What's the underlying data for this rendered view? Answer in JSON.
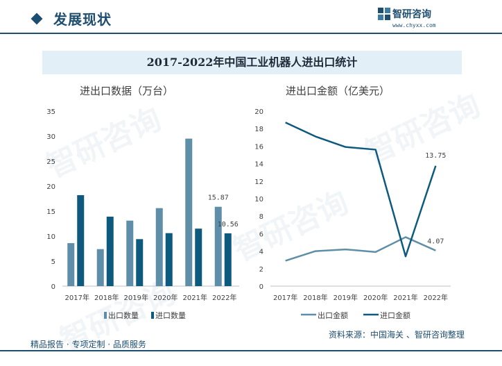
{
  "header": {
    "section_title": "发展现状",
    "logo_name": "智研咨询",
    "logo_url": "www.chyxx.com",
    "watermark": "智研咨询"
  },
  "main_title": "2017-2022年中国工业机器人进出口统计",
  "footer": {
    "left": "精品报告 · 专项定制 · 品质服务",
    "right": "资料来源：中国海关 、智研咨询整理"
  },
  "colors": {
    "export": "#5f8ea8",
    "import": "#0e5a7e",
    "brand": "#1d4e6f",
    "axis": "#bfbfbf",
    "text": "#404040"
  },
  "chart_data": [
    {
      "type": "bar",
      "title": "进出口数据（万台）",
      "categories": [
        "2017年",
        "2018年",
        "2019年",
        "2020年",
        "2021年",
        "2022年"
      ],
      "ylim": [
        0,
        35
      ],
      "yticks": [
        0,
        5,
        10,
        15,
        20,
        25,
        30,
        35
      ],
      "legend_position": "bottom",
      "series": [
        {
          "name": "出口数量",
          "values": [
            8.6,
            7.4,
            13.1,
            15.6,
            29.5,
            15.87
          ]
        },
        {
          "name": "进口数量",
          "values": [
            18.2,
            13.9,
            9.4,
            10.6,
            11.5,
            10.56
          ]
        }
      ],
      "data_labels": [
        {
          "series": 0,
          "index": 5,
          "text": "15.87"
        },
        {
          "series": 1,
          "index": 5,
          "text": "10.56"
        }
      ]
    },
    {
      "type": "line",
      "title": "进出口金额（亿美元）",
      "categories": [
        "2017年",
        "2018年",
        "2019年",
        "2020年",
        "2021年",
        "2022年"
      ],
      "ylim": [
        0,
        20
      ],
      "yticks": [
        0,
        2,
        4,
        6,
        8,
        10,
        12,
        14,
        16,
        18,
        20
      ],
      "legend_position": "bottom",
      "series": [
        {
          "name": "出口金额",
          "values": [
            2.9,
            4.0,
            4.2,
            3.9,
            5.6,
            4.07
          ]
        },
        {
          "name": "进口金额",
          "values": [
            18.7,
            17.1,
            15.9,
            15.6,
            3.4,
            13.75
          ]
        }
      ],
      "data_labels": [
        {
          "series": 0,
          "index": 5,
          "text": "4.07"
        },
        {
          "series": 1,
          "index": 5,
          "text": "13.75"
        }
      ]
    }
  ]
}
